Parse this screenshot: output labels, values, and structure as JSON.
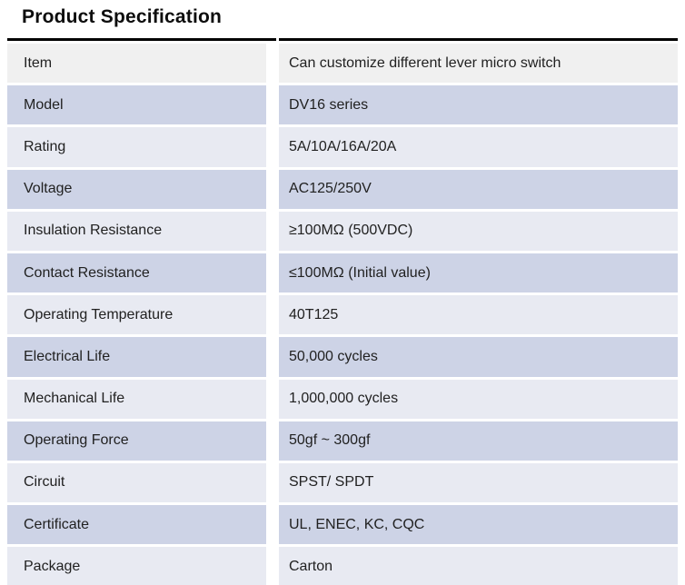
{
  "title": "Product Specification",
  "table": {
    "rows": [
      {
        "label": "Item",
        "value": "Can customize different lever micro switch"
      },
      {
        "label": "Model",
        "value": "DV16 series"
      },
      {
        "label": "Rating",
        "value": "5A/10A/16A/20A"
      },
      {
        "label": "Voltage",
        "value": "AC125/250V"
      },
      {
        "label": "Insulation Resistance",
        "value": "≥100MΩ (500VDC)"
      },
      {
        "label": "Contact Resistance",
        "value": "≤100MΩ (Initial value)"
      },
      {
        "label": "Operating Temperature",
        "value": "40T125"
      },
      {
        "label": "Electrical Life",
        "value": "50,000 cycles"
      },
      {
        "label": "Mechanical Life",
        "value": "1,000,000 cycles"
      },
      {
        "label": "Operating Force",
        "value": "50gf ~ 300gf"
      },
      {
        "label": "Circuit",
        "value": "SPST/ SPDT"
      },
      {
        "label": "Certificate",
        "value": "UL, ENEC, KC, CQC"
      },
      {
        "label": "Package",
        "value": "Carton"
      }
    ]
  },
  "colors": {
    "header_row_bg": "#f0f0f0",
    "even_row_bg": "#cdd3e6",
    "odd_row_bg": "#e8eaf2",
    "top_border": "#000000",
    "text": "#212121"
  }
}
